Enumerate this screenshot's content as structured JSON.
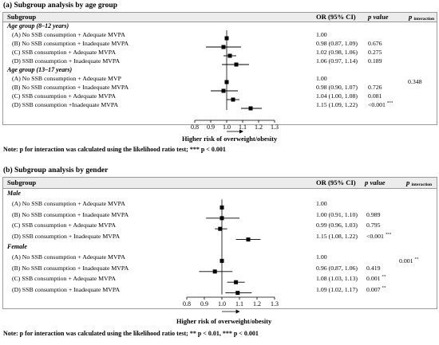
{
  "panel_a": {
    "title": "(a) Subgroup analysis by age group",
    "headers": {
      "subgroup": "Subgroup",
      "or": "OR (95% CI)",
      "p": "p value",
      "pint": "p",
      "pint_sub": "interaction"
    },
    "groups": [
      {
        "label": "Age group (8–12 years)",
        "pint": "",
        "rows": [
          {
            "label": "(A) No SSB consumption + Adequate MVPA",
            "or_text": "1.00",
            "p": "",
            "sig": ""
          },
          {
            "label": "(B) No SSB consumption + Inadequate MVPA",
            "or_text": "0.98 (0.87, 1.09)",
            "p": "0.676",
            "sig": ""
          },
          {
            "label": "(C) SSB consumption + Adequate MVPA",
            "or_text": "1.02 (0.98, 1.06)",
            "p": "0.275",
            "sig": ""
          },
          {
            "label": "(D) SSB consumption + Inadequate MVPA",
            "or_text": "1.06 (0.97, 1.14)",
            "p": "0.189",
            "sig": ""
          }
        ]
      },
      {
        "label": "Age group (13–17 years)",
        "pint": "0.348",
        "rows": [
          {
            "label": "(A) No SSB consumption + Adequate MVP",
            "or_text": "1.00",
            "p": "",
            "sig": ""
          },
          {
            "label": "(B) No SSB consumption + Inadequate MVPA",
            "or_text": "0.98 (0.90, 1.07)",
            "p": "0.726",
            "sig": ""
          },
          {
            "label": "(C) SSB consumption + Adequate MVPA",
            "or_text": "1.04 (1.00, 1.08)",
            "p": "0.081",
            "sig": ""
          },
          {
            "label": "(D) SSB consumption +Inadequate MVPA",
            "or_text": "1.15 (1.09, 1.22)",
            "p": "<0.001",
            "sig": "***"
          }
        ]
      }
    ],
    "axis_ticks": [
      "0.8",
      "0.9",
      "1.0",
      "1.1",
      "1.2",
      "1.3"
    ],
    "axis_label": "Higher risk of overweight/obesity",
    "note": "Note: p for interaction was calculated using the likelihood ratio test; *** p < 0.001"
  },
  "panel_b": {
    "title": "(b) Subgroup analysis by gender",
    "headers": {
      "subgroup": "Subgroup",
      "or": "OR (95% CI)",
      "p": "p value",
      "pint": "p",
      "pint_sub": "interaction"
    },
    "groups": [
      {
        "label": "Male",
        "pint": "",
        "rows": [
          {
            "label": "(A) No SSB consumption + Adequate MVPA",
            "or_text": "1.00",
            "p": "",
            "sig": ""
          },
          {
            "label": "(B) No SSB consumption + Inadequate MVPA",
            "or_text": "1.00 (0.91, 1.10)",
            "p": "0.989",
            "sig": ""
          },
          {
            "label": "(C) SSB consumption + Adequate MVPA",
            "or_text": "0.99 (0.96, 1.03)",
            "p": "0.795",
            "sig": ""
          },
          {
            "label": "(D) SSB consumption + Inadequate MVPA",
            "or_text": "1.15 (1.08, 1.22)",
            "p": "<0.001",
            "sig": "***"
          }
        ]
      },
      {
        "label": "Female",
        "pint": "0.001",
        "pint_sig": "**",
        "rows": [
          {
            "label": "(A) No SSB consumption + Adequate MVPA",
            "or_text": "1.00",
            "p": "",
            "sig": ""
          },
          {
            "label": "(B) No SSB consumption + Inadequate MVPA",
            "or_text": "0.96 (0.87, 1.06)",
            "p": "0.419",
            "sig": ""
          },
          {
            "label": "(C) SSB consumption + Adequate MVPA",
            "or_text": "1.08 (1.03, 1.13)",
            "p": "0.001",
            "sig": "**"
          },
          {
            "label": "(D) SSB consumption + Inadequate MVPA",
            "or_text": "1.09 (1.02, 1.17)",
            "p": "0.007",
            "sig": "**"
          }
        ]
      }
    ],
    "axis_ticks": [
      "0.8",
      "0.9",
      "1.0",
      "1.1",
      "1.2",
      "1.3"
    ],
    "axis_label": "Higher risk of overweight/obesity",
    "note": "Note: p for interaction was calculated using the likelihood ratio test; ** p < 0.01, *** p < 0.001"
  },
  "chart_data": [
    {
      "type": "forest",
      "xlim": [
        0.8,
        1.3
      ],
      "reference": 1.0,
      "series": [
        {
          "name": "Age group (8–12 years)",
          "or": [
            1.0,
            0.98,
            1.02,
            1.06
          ],
          "lower": [
            null,
            0.87,
            0.98,
            0.97
          ],
          "upper": [
            null,
            1.09,
            1.06,
            1.14
          ]
        },
        {
          "name": "Age group (13–17 years)",
          "or": [
            1.0,
            0.98,
            1.04,
            1.15
          ],
          "lower": [
            null,
            0.9,
            1.0,
            1.09
          ],
          "upper": [
            null,
            1.07,
            1.08,
            1.22
          ]
        }
      ]
    },
    {
      "type": "forest",
      "xlim": [
        0.8,
        1.3
      ],
      "reference": 1.0,
      "series": [
        {
          "name": "Male",
          "or": [
            1.0,
            1.0,
            0.99,
            1.15
          ],
          "lower": [
            null,
            0.91,
            0.96,
            1.08
          ],
          "upper": [
            null,
            1.1,
            1.03,
            1.22
          ]
        },
        {
          "name": "Female",
          "or": [
            1.0,
            0.96,
            1.08,
            1.09
          ],
          "lower": [
            null,
            0.87,
            1.03,
            1.02
          ],
          "upper": [
            null,
            1.06,
            1.13,
            1.17
          ]
        }
      ]
    }
  ]
}
